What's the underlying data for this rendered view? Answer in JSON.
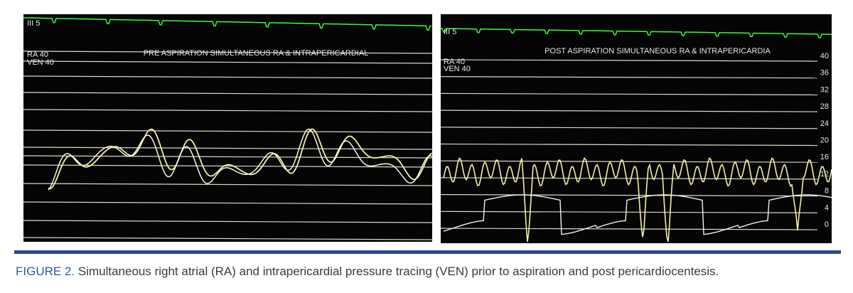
{
  "left_panel": {
    "lead": "III 5",
    "ra": "RA 40",
    "ven": "VEN 40",
    "title": "PRE ASPIRATION SIMULTANEOUS RA & INTRAPERICARDIAL"
  },
  "right_panel": {
    "lead": "III 5",
    "ra": "RA 40",
    "ven": "VEN 40",
    "title": "POST ASPIRATION SIMULTANEOUS RA & INTRAPERICARDIA",
    "scale": [
      40,
      36,
      32,
      28,
      24,
      20,
      16,
      12,
      8,
      4,
      0
    ]
  },
  "caption": {
    "label": "FIGURE 2.",
    "text": "Simultaneous right atrial (RA) and intrapericardial pressure tracing (VEN) prior to aspiration and post pericardiocentesis."
  }
}
